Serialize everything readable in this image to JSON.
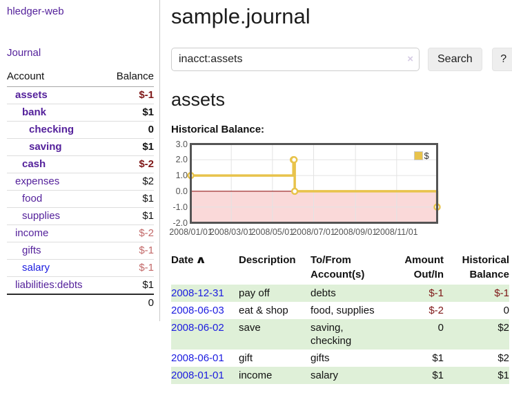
{
  "app": {
    "brand": "hledger-web"
  },
  "sidebar": {
    "journal_link": "Journal",
    "header": {
      "account": "Account",
      "balance": "Balance"
    },
    "accounts": [
      {
        "name": "assets",
        "depth": 0,
        "bold": true,
        "balance": "$-1",
        "balance_class": "neg-strong",
        "link_color": "purple"
      },
      {
        "name": "bank",
        "depth": 1,
        "bold": true,
        "balance": "$1",
        "balance_class": "",
        "link_color": "purple"
      },
      {
        "name": "checking",
        "depth": 2,
        "bold": true,
        "balance": "0",
        "balance_class": "",
        "link_color": "purple"
      },
      {
        "name": "saving",
        "depth": 2,
        "bold": true,
        "balance": "$1",
        "balance_class": "",
        "link_color": "purple"
      },
      {
        "name": "cash",
        "depth": 1,
        "bold": true,
        "balance": "$-2",
        "balance_class": "neg-strong",
        "link_color": "purple"
      },
      {
        "name": "expenses",
        "depth": 0,
        "bold": false,
        "balance": "$2",
        "balance_class": "",
        "link_color": "purple"
      },
      {
        "name": "food",
        "depth": 1,
        "bold": false,
        "balance": "$1",
        "balance_class": "",
        "link_color": "purple"
      },
      {
        "name": "supplies",
        "depth": 1,
        "bold": false,
        "balance": "$1",
        "balance_class": "",
        "link_color": "purple"
      },
      {
        "name": "income",
        "depth": 0,
        "bold": false,
        "balance": "$-2",
        "balance_class": "neg-soft",
        "link_color": "purple"
      },
      {
        "name": "gifts",
        "depth": 1,
        "bold": false,
        "balance": "$-1",
        "balance_class": "neg-soft",
        "link_color": "purple"
      },
      {
        "name": "salary",
        "depth": 1,
        "bold": false,
        "balance": "$-1",
        "balance_class": "neg-soft",
        "link_color": "blue"
      },
      {
        "name": "liabilities:debts",
        "depth": 0,
        "bold": false,
        "balance": "$1",
        "balance_class": "",
        "link_color": "purple"
      }
    ],
    "total": "0"
  },
  "main": {
    "title": "sample.journal",
    "search": {
      "value": "inacct:assets",
      "clear_icon": "×",
      "button": "Search",
      "help_button": "?"
    },
    "account_heading": "assets",
    "chart_label": "Historical Balance:"
  },
  "chart_data": {
    "type": "line",
    "step": true,
    "title": "Historical Balance:",
    "legend": {
      "position": "top-right",
      "entries": [
        "$"
      ]
    },
    "series": [
      {
        "name": "$",
        "points": [
          [
            "2008-01-01",
            1.0
          ],
          [
            "2008-06-01",
            2.0
          ],
          [
            "2008-06-02",
            2.0
          ],
          [
            "2008-06-03",
            0.0
          ],
          [
            "2008-12-31",
            -1.0
          ]
        ]
      }
    ],
    "x_range": [
      "2008-01-01",
      "2008-12-31"
    ],
    "ylim": [
      -2.0,
      3.0
    ],
    "y_ticks": [
      3.0,
      2.0,
      1.0,
      0.0,
      -1.0,
      -2.0
    ],
    "x_ticks": [
      "2008/01/01",
      "2008/03/01",
      "2008/05/01",
      "2008/07/01",
      "2008/09/01",
      "2008/11/01"
    ],
    "grid": true,
    "negative_region_shaded": true
  },
  "register": {
    "headers": {
      "date": "Date",
      "description": "Description",
      "accounts": "To/From Account(s)",
      "amount": "Amount Out/In",
      "balance": "Historical Balance"
    },
    "sort_icon": "∧",
    "rows": [
      {
        "date": "2008-12-31",
        "description": "pay off",
        "accounts": "debts",
        "amount": "$-1",
        "amount_class": "neg-strong",
        "balance": "$-1",
        "balance_class": "neg-strong"
      },
      {
        "date": "2008-06-03",
        "description": "eat & shop",
        "accounts": "food, supplies",
        "amount": "$-2",
        "amount_class": "neg-strong",
        "balance": "0",
        "balance_class": ""
      },
      {
        "date": "2008-06-02",
        "description": "save",
        "accounts": "saving, checking",
        "amount": "0",
        "amount_class": "",
        "balance": "$2",
        "balance_class": ""
      },
      {
        "date": "2008-06-01",
        "description": "gift",
        "accounts": "gifts",
        "amount": "$1",
        "amount_class": "",
        "balance": "$2",
        "balance_class": ""
      },
      {
        "date": "2008-01-01",
        "description": "income",
        "accounts": "salary",
        "amount": "$1",
        "amount_class": "",
        "balance": "$1",
        "balance_class": ""
      }
    ]
  },
  "colors": {
    "link_purple": "#54219b",
    "link_blue": "#1b1be0",
    "neg_strong": "#7e1717",
    "neg_soft": "#c26868",
    "row_green": "#dff0d8",
    "chart_line": "#e8c34b",
    "chart_fill_negative": "#fad9d9",
    "zero_line": "#8b0000",
    "axis_text": "#545454"
  }
}
